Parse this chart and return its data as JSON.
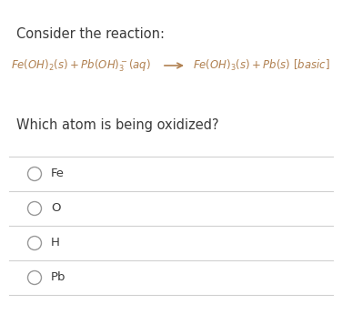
{
  "title": "Consider the reaction:",
  "question": "Which atom is being oxidized?",
  "options": [
    "Fe",
    "O",
    "H",
    "Pb"
  ],
  "bg_color": "#ffffff",
  "title_color": "#3a3a3a",
  "reaction_color": "#b08050",
  "question_color": "#3a3a3a",
  "option_color": "#3a3a3a",
  "line_color": "#d0d0d0",
  "circle_color": "#999999",
  "title_fontsize": 10.5,
  "reaction_fontsize": 8.5,
  "question_fontsize": 10.5,
  "option_fontsize": 9.5,
  "fig_width": 3.76,
  "fig_height": 3.57,
  "dpi": 100
}
